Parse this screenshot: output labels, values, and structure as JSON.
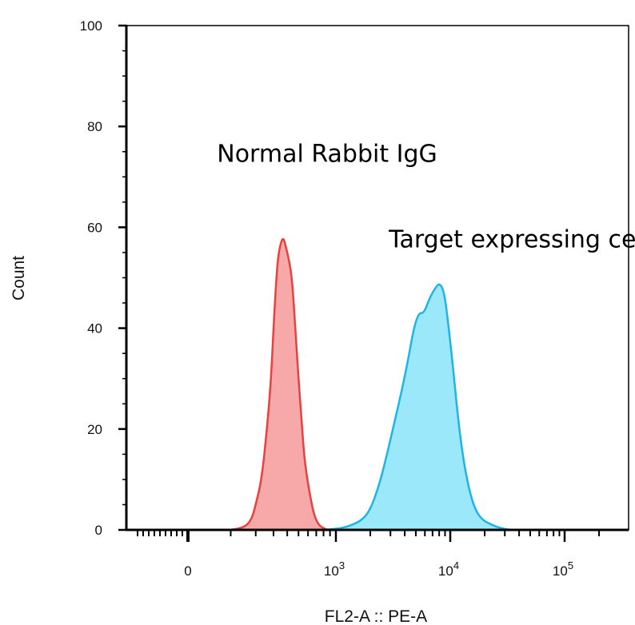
{
  "chart_data": {
    "type": "area",
    "title": "",
    "xlabel": "FL2-A :: PE-A",
    "ylabel": "Count",
    "x_scale": "biexponential",
    "xlim": [
      -300,
      200000
    ],
    "ylim": [
      0,
      100
    ],
    "y_ticks": [
      0,
      20,
      40,
      60,
      80,
      100
    ],
    "x_ticks": [
      {
        "value": 0,
        "base": "0",
        "exp": ""
      },
      {
        "value": 1000,
        "base": "10",
        "exp": "3"
      },
      {
        "value": 10000,
        "base": "10",
        "exp": "4"
      },
      {
        "value": 100000,
        "base": "10",
        "exp": "5"
      }
    ],
    "grid": false,
    "annotations": [
      {
        "text": "Normal Rabbit IgG",
        "x": 60,
        "y": 73
      },
      {
        "text": "Target expressing cell",
        "x": 2900,
        "y": 56
      }
    ],
    "series": [
      {
        "fill": "#f7a8a8",
        "stroke": "#e8413f",
        "points": [
          [
            100,
            0
          ],
          [
            150,
            0.5
          ],
          [
            180,
            2
          ],
          [
            200,
            5
          ],
          [
            230,
            10
          ],
          [
            260,
            20
          ],
          [
            285,
            30
          ],
          [
            300,
            40
          ],
          [
            315,
            48
          ],
          [
            330,
            54
          ],
          [
            350,
            57
          ],
          [
            370,
            58
          ],
          [
            390,
            56
          ],
          [
            410,
            54
          ],
          [
            440,
            50
          ],
          [
            470,
            40
          ],
          [
            500,
            30
          ],
          [
            530,
            22
          ],
          [
            560,
            14
          ],
          [
            610,
            8
          ],
          [
            670,
            3
          ],
          [
            730,
            1
          ],
          [
            800,
            0.3
          ],
          [
            870,
            0
          ]
        ]
      },
      {
        "fill": "#9be8fb",
        "stroke": "#1fb3e8",
        "points": [
          [
            800,
            0
          ],
          [
            1100,
            0.3
          ],
          [
            1400,
            1
          ],
          [
            1700,
            2
          ],
          [
            2000,
            4
          ],
          [
            2400,
            9
          ],
          [
            2800,
            15
          ],
          [
            3300,
            22
          ],
          [
            3800,
            28
          ],
          [
            4300,
            34
          ],
          [
            4800,
            40
          ],
          [
            5300,
            43
          ],
          [
            5900,
            43
          ],
          [
            6600,
            46
          ],
          [
            7400,
            48
          ],
          [
            8100,
            49
          ],
          [
            8900,
            47
          ],
          [
            9700,
            40
          ],
          [
            10600,
            32
          ],
          [
            11700,
            22
          ],
          [
            13000,
            14
          ],
          [
            14600,
            8
          ],
          [
            16500,
            4
          ],
          [
            19000,
            2
          ],
          [
            23000,
            1
          ],
          [
            28000,
            0.3
          ],
          [
            34000,
            0
          ]
        ]
      }
    ]
  }
}
